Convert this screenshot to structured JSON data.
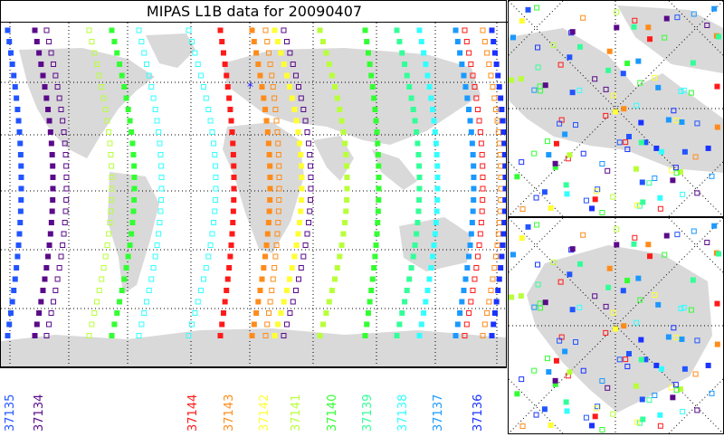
{
  "title": "MIPAS L1B data for 20090407",
  "orbits": [
    {
      "label": "37135",
      "color": "#2255ff"
    },
    {
      "label": "37134",
      "color": "#5a0a8a"
    },
    {
      "label": "37144",
      "color": "#ff1a1a"
    },
    {
      "label": "37143",
      "color": "#ff8c1a"
    },
    {
      "label": "37142",
      "color": "#ffff33"
    },
    {
      "label": "37141",
      "color": "#b8ff3a"
    },
    {
      "label": "37140",
      "color": "#33ff33"
    },
    {
      "label": "37139",
      "color": "#33ff99"
    },
    {
      "label": "37138",
      "color": "#33ffff"
    },
    {
      "label": "37137",
      "color": "#1a99ff"
    },
    {
      "label": "37136",
      "color": "#1a33ff"
    }
  ]
}
